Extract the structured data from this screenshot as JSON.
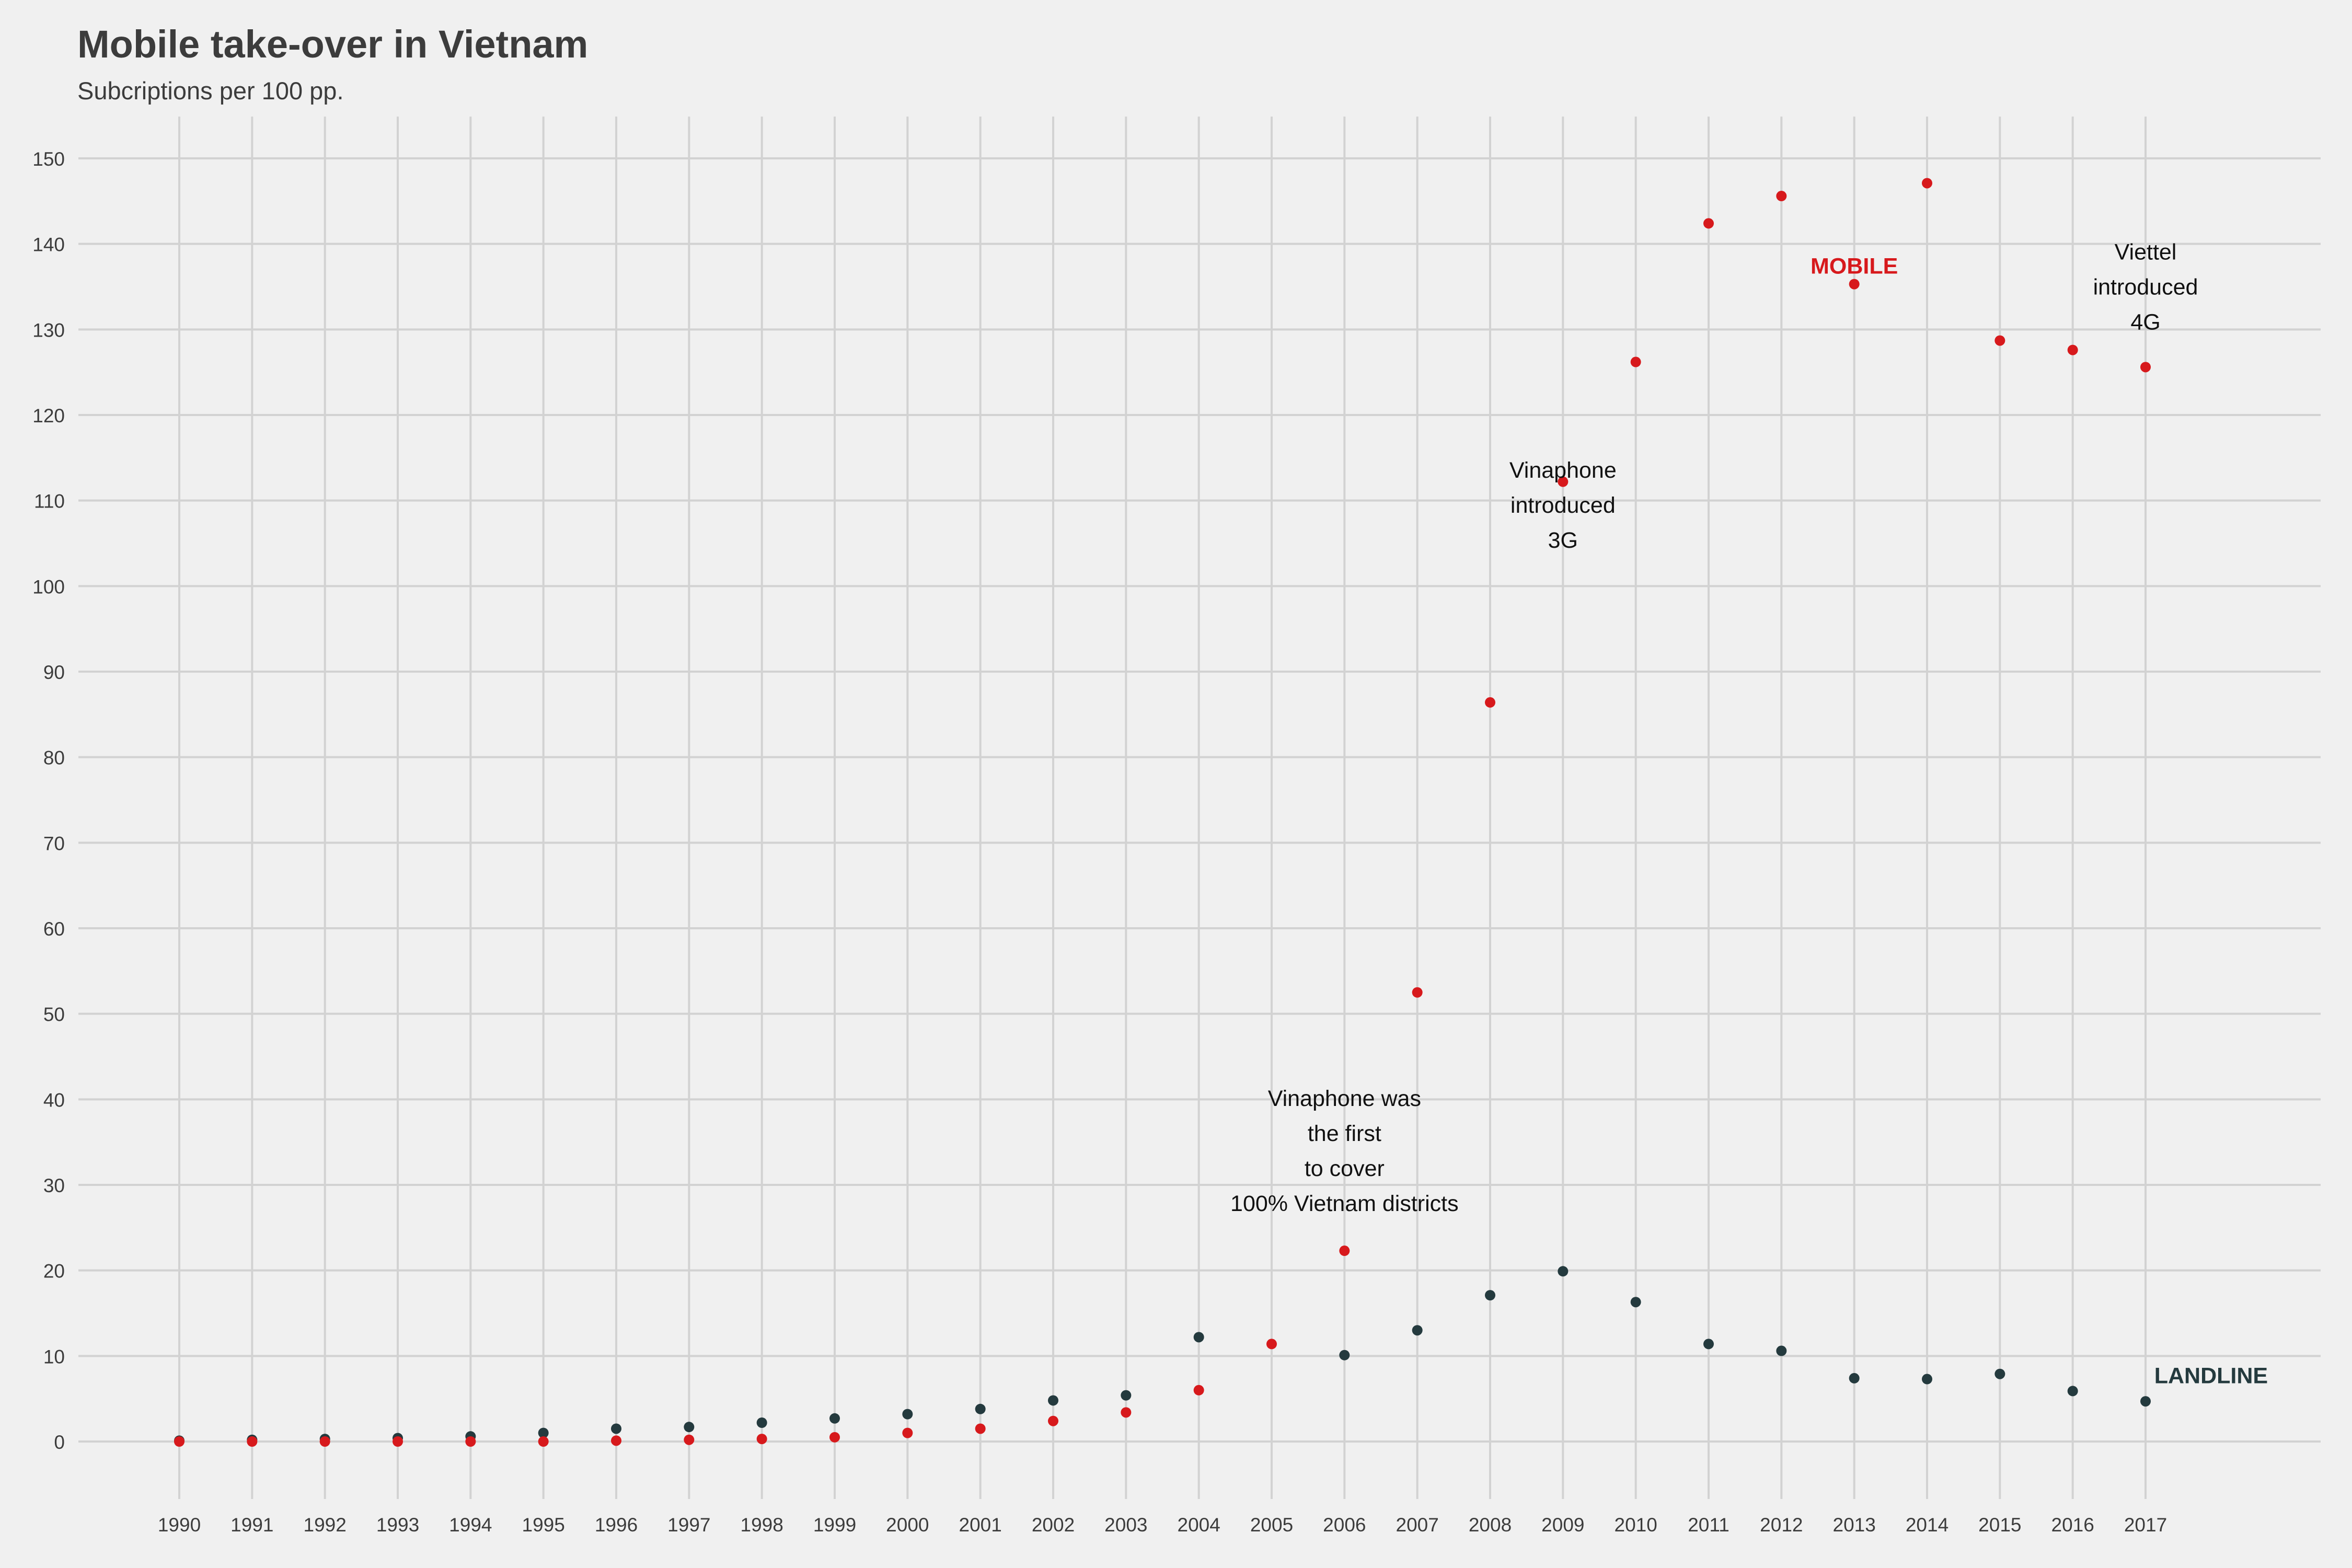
{
  "header": {
    "title": "Mobile take-over in Vietnam",
    "subtitle": "Subcriptions per 100 pp."
  },
  "chart_data": {
    "type": "scatter",
    "title": "Mobile take-over in Vietnam",
    "subtitle": "Subcriptions per 100 pp.",
    "xlabel": "",
    "ylabel": "",
    "x": [
      1990,
      1991,
      1992,
      1993,
      1994,
      1995,
      1996,
      1997,
      1998,
      1999,
      2000,
      2001,
      2002,
      2003,
      2004,
      2005,
      2006,
      2007,
      2008,
      2009,
      2010,
      2011,
      2012,
      2013,
      2014,
      2015,
      2016,
      2017
    ],
    "xlim": [
      1990,
      2017
    ],
    "ylim": [
      0,
      150
    ],
    "yticks": [
      0,
      10,
      20,
      30,
      40,
      50,
      60,
      70,
      80,
      90,
      100,
      110,
      120,
      130,
      140,
      150
    ],
    "grid": true,
    "series": [
      {
        "name": "LANDLINE",
        "color": "#243a3e",
        "x": [
          1990,
          1991,
          1992,
          1993,
          1994,
          1995,
          1996,
          1997,
          1998,
          1999,
          2000,
          2001,
          2002,
          2003,
          2004,
          2006,
          2007,
          2008,
          2009,
          2010,
          2011,
          2012,
          2013,
          2014,
          2015,
          2016,
          2017
        ],
        "values": [
          0.1,
          0.2,
          0.3,
          0.4,
          0.6,
          1.0,
          1.5,
          1.7,
          2.2,
          2.7,
          3.2,
          3.8,
          4.8,
          5.4,
          12.2,
          10.1,
          13.0,
          17.1,
          19.9,
          16.3,
          11.4,
          10.6,
          7.4,
          7.3,
          7.9,
          5.9,
          4.7
        ]
      },
      {
        "name": "MOBILE",
        "color": "#d7191c",
        "x": [
          1990,
          1991,
          1992,
          1993,
          1994,
          1995,
          1996,
          1997,
          1998,
          1999,
          2000,
          2001,
          2002,
          2003,
          2004,
          2005,
          2006,
          2007,
          2008,
          2009,
          2010,
          2011,
          2012,
          2013,
          2014,
          2015,
          2016,
          2017
        ],
        "values": [
          0.0,
          0.0,
          0.0,
          0.0,
          0.0,
          0.0,
          0.1,
          0.2,
          0.3,
          0.5,
          1.0,
          1.5,
          2.4,
          3.4,
          6.0,
          11.4,
          22.3,
          52.5,
          86.4,
          112.2,
          126.2,
          142.4,
          145.6,
          135.3,
          147.1,
          128.7,
          127.6,
          125.6
        ]
      }
    ],
    "series_labels": [
      {
        "text": "MOBILE",
        "x": 2013,
        "y": 137.5,
        "color": "#d7191c"
      },
      {
        "text": "LANDLINE",
        "x": 2017.9,
        "y": 7.8,
        "color": "#243a3e"
      }
    ],
    "annotations": [
      {
        "lines": [
          "Vinaphone was",
          "the first",
          "to cover",
          "100% Vietnam districts"
        ],
        "x": 2006,
        "y": 34
      },
      {
        "lines": [
          "Vinaphone",
          "introduced",
          "3G"
        ],
        "x": 2009,
        "y": 109.5
      },
      {
        "lines": [
          "Viettel",
          "introduced",
          "4G"
        ],
        "x": 2017,
        "y": 135
      }
    ]
  }
}
